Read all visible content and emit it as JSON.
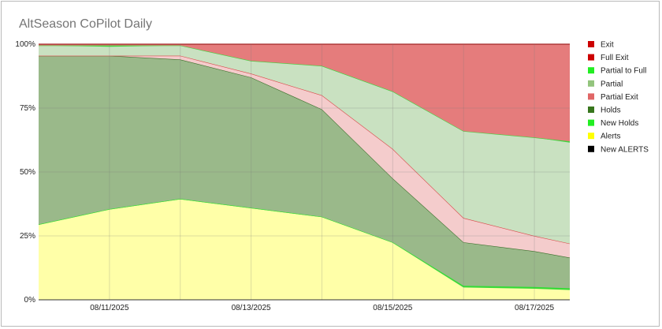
{
  "chart_data": {
    "type": "area",
    "title": "AltSeason CoPilot Daily",
    "stacked": true,
    "normalized": true,
    "x": [
      "08/10/2025",
      "08/11/2025",
      "08/12/2025",
      "08/13/2025",
      "08/14/2025",
      "08/15/2025",
      "08/16/2025",
      "08/17/2025",
      "08/18/2025"
    ],
    "x_tick_labels": [
      "08/11/2025",
      "08/13/2025",
      "08/15/2025",
      "08/17/2025"
    ],
    "y_tick_labels": [
      "0%",
      "25%",
      "50%",
      "75%",
      "100%"
    ],
    "ylim": [
      0,
      100
    ],
    "x_start": "2025-08-10T00:00",
    "x_end": "2025-08-17T12:00",
    "points_x": [
      "2025-08-10T00:00",
      "2025-08-11T00:00",
      "2025-08-12T00:00",
      "2025-08-13T00:00",
      "2025-08-14T00:00",
      "2025-08-15T00:00",
      "2025-08-16T00:00",
      "2025-08-17T00:00",
      "2025-08-17T12:00"
    ],
    "series": [
      {
        "name": "Alerts",
        "color": "#ffffa8",
        "line": "#4cd64c",
        "values": [
          29.5,
          35.5,
          39.5,
          36.0,
          32.5,
          22.5,
          5.0,
          4.5,
          4.0
        ]
      },
      {
        "name": "New Holds",
        "color": "#33dd33",
        "line": "#33dd33",
        "values": [
          0,
          0,
          0,
          0,
          0,
          0,
          0.5,
          0.5,
          0.5
        ]
      },
      {
        "name": "Holds",
        "color": "#9ab98a",
        "line": "#3a6e2a",
        "values": [
          66.0,
          60.0,
          54.5,
          51.0,
          42.0,
          25.0,
          17.0,
          14.0,
          12.0
        ]
      },
      {
        "name": "Partial Exit",
        "color": "#f4cccc",
        "line": "#d94a4a",
        "values": [
          0,
          0,
          1.5,
          1.5,
          5.5,
          11.5,
          9.5,
          6.0,
          5.5
        ]
      },
      {
        "name": "Partial",
        "color": "#c9e1c1",
        "line": "#c9e1c1",
        "values": [
          4.0,
          3.5,
          4.0,
          5.0,
          11.5,
          22.5,
          34.0,
          38.5,
          39.5
        ]
      },
      {
        "name": "Partial to Full",
        "color": "#3cd63c",
        "line": "#3cd63c",
        "values": [
          0,
          0.5,
          0,
          0,
          0,
          0,
          0,
          0,
          0.5
        ]
      },
      {
        "name": "Full Exit",
        "color": "#cc1111",
        "line": "#cc1111",
        "values": [
          0,
          0,
          0,
          0,
          0,
          0,
          0,
          0,
          0
        ]
      },
      {
        "name": "Exit",
        "color": "#e57c7c",
        "line": "#aa1111",
        "values": [
          0.5,
          0.5,
          0.5,
          6.5,
          8.5,
          18.5,
          34.0,
          36.5,
          38.0
        ]
      },
      {
        "name": "New ALERTS",
        "color": "#000000",
        "line": "#000000",
        "values": [
          0,
          0,
          0,
          0,
          0,
          0,
          0,
          0,
          0
        ]
      }
    ],
    "legend": [
      {
        "name": "Exit",
        "color": "#cc0000"
      },
      {
        "name": "Full Exit",
        "color": "#cc0000"
      },
      {
        "name": "Partial to Full",
        "color": "#22ee22"
      },
      {
        "name": "Partial",
        "color": "#93c47d"
      },
      {
        "name": "Partial Exit",
        "color": "#e06666"
      },
      {
        "name": "Holds",
        "color": "#38761d"
      },
      {
        "name": "New Holds",
        "color": "#22ee22"
      },
      {
        "name": "Alerts",
        "color": "#ffff00"
      },
      {
        "name": "New ALERTS",
        "color": "#000000"
      }
    ],
    "legend_position": "right",
    "grid": true
  }
}
